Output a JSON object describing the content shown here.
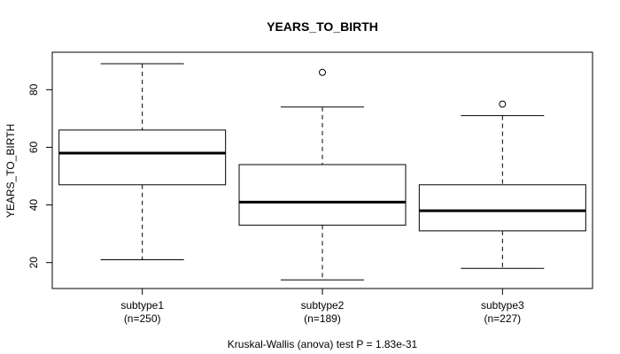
{
  "chart_data": {
    "type": "boxplot",
    "title": "YEARS_TO_BIRTH",
    "ylabel": "YEARS_TO_BIRTH",
    "xlabel": "",
    "ylim": [
      11,
      93
    ],
    "yticks": [
      20,
      40,
      60,
      80
    ],
    "footer": "Kruskal-Wallis (anova) test P = 1.83e-31",
    "categories": [
      "subtype1",
      "subtype2",
      "subtype3"
    ],
    "counts": [
      "(n=250)",
      "(n=189)",
      "(n=227)"
    ],
    "boxes": [
      {
        "name": "subtype1",
        "whisker_low": 21,
        "q1": 47,
        "median": 58,
        "q3": 66,
        "whisker_high": 89,
        "outliers": []
      },
      {
        "name": "subtype2",
        "whisker_low": 14,
        "q1": 33,
        "median": 41,
        "q3": 54,
        "whisker_high": 74,
        "outliers": [
          86
        ]
      },
      {
        "name": "subtype3",
        "whisker_low": 18,
        "q1": 31,
        "median": 38,
        "q3": 47,
        "whisker_high": 71,
        "outliers": [
          75
        ]
      }
    ]
  }
}
